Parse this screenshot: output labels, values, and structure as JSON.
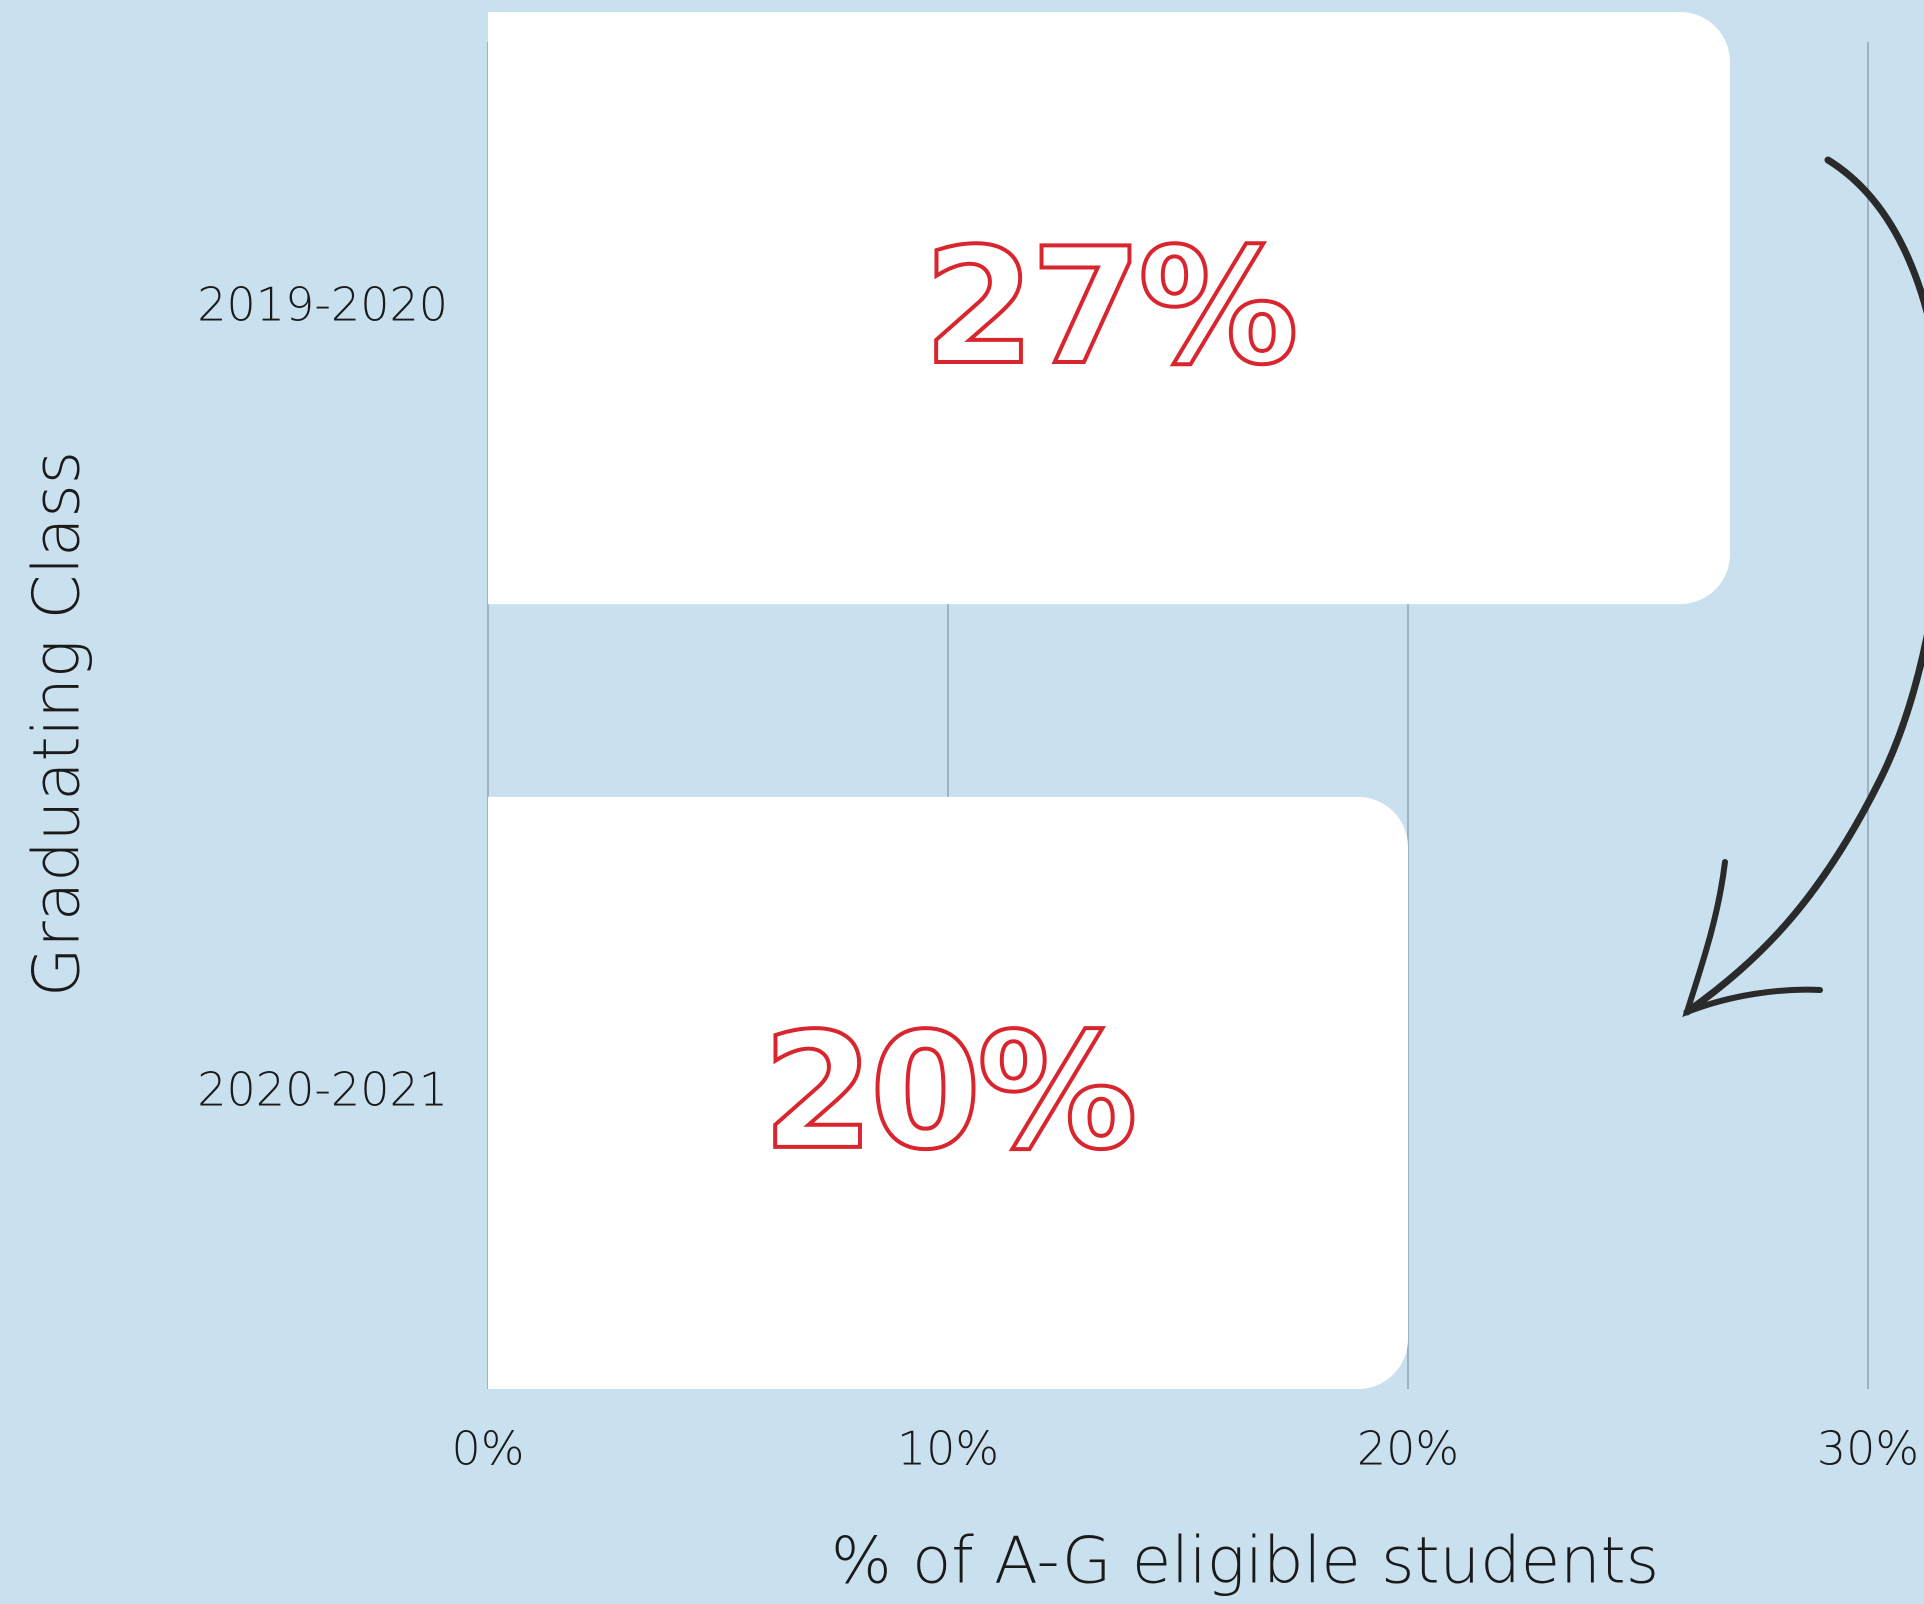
{
  "chart_data": {
    "type": "bar",
    "orientation": "horizontal",
    "categories": [
      "2019-2020",
      "2020-2021"
    ],
    "values": [
      27,
      20
    ],
    "value_labels": [
      "27%",
      "20%"
    ],
    "color": "#ffffff",
    "label_color": "#d9252e",
    "xlim": [
      0,
      30
    ],
    "xticks": [
      {
        "value": 0,
        "label": "0%"
      },
      {
        "value": 10,
        "label": "10%"
      },
      {
        "value": 20,
        "label": "20%"
      },
      {
        "value": 30,
        "label": "30%"
      }
    ],
    "grid": true,
    "xlabel": "% of A-G eligible students",
    "ylabel": "Graduating Class"
  }
}
